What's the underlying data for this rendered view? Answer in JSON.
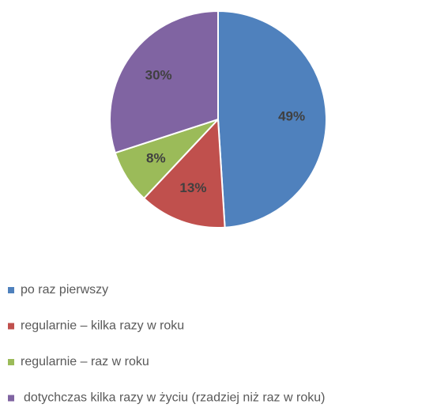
{
  "chart_data": {
    "type": "pie",
    "categories": [
      "po raz pierwszy",
      "regularnie – kilka razy w roku",
      "regularnie – raz w roku",
      "dotychczas kilka razy w życiu (rzadziej niż raz w roku)"
    ],
    "values": [
      49,
      13,
      8,
      30
    ],
    "value_labels": [
      "49%",
      "13%",
      "8%",
      "30%"
    ],
    "colors": [
      "#4f81bd",
      "#c0504d",
      "#9bbb59",
      "#8064a2"
    ],
    "legend": "bottom"
  }
}
